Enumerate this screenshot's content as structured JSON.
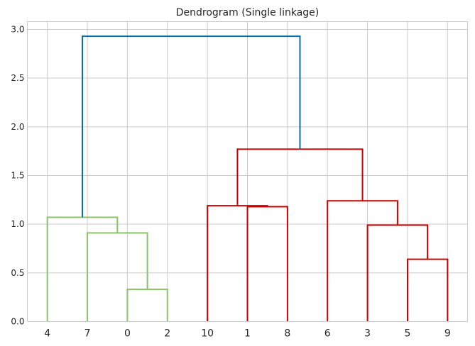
{
  "chart_data": {
    "type": "dendrogram",
    "title": "Dendrogram (Single linkage)",
    "xlabel": "",
    "ylabel": "",
    "ylim": [
      0,
      3.08
    ],
    "yticks": [
      0.0,
      0.5,
      1.0,
      1.5,
      2.0,
      2.5,
      3.0
    ],
    "ytick_labels": [
      "0.0",
      "0.5",
      "1.0",
      "1.5",
      "2.0",
      "2.5",
      "3.0"
    ],
    "grid": true,
    "leaves": [
      "4",
      "7",
      "0",
      "2",
      "10",
      "1",
      "8",
      "6",
      "3",
      "5",
      "9"
    ],
    "merges": [
      {
        "left": "leaf:2",
        "right": "leaf:3",
        "height": 0.33,
        "color": "#8cc26a"
      },
      {
        "left": "leaf:1",
        "right": "node:0",
        "height": 0.91,
        "color": "#8cc26a"
      },
      {
        "left": "leaf:0",
        "right": "node:1",
        "height": 1.07,
        "color": "#8cc26a"
      },
      {
        "left": "leaf:9",
        "right": "leaf:10",
        "height": 0.64,
        "color": "#cc0000"
      },
      {
        "left": "leaf:8",
        "right": "node:3",
        "height": 0.99,
        "color": "#cc0000"
      },
      {
        "left": "leaf:7",
        "right": "node:4",
        "height": 1.24,
        "color": "#cc0000"
      },
      {
        "left": "leaf:5",
        "right": "leaf:6",
        "height": 1.18,
        "color": "#cc0000"
      },
      {
        "left": "leaf:4",
        "right": "node:6",
        "height": 1.19,
        "color": "#cc0000"
      },
      {
        "left": "node:7",
        "right": "node:5",
        "height": 1.77,
        "color": "#cc0000"
      },
      {
        "left": "node:2",
        "right": "node:8",
        "height": 2.93,
        "color": "#0a70a8"
      }
    ]
  }
}
